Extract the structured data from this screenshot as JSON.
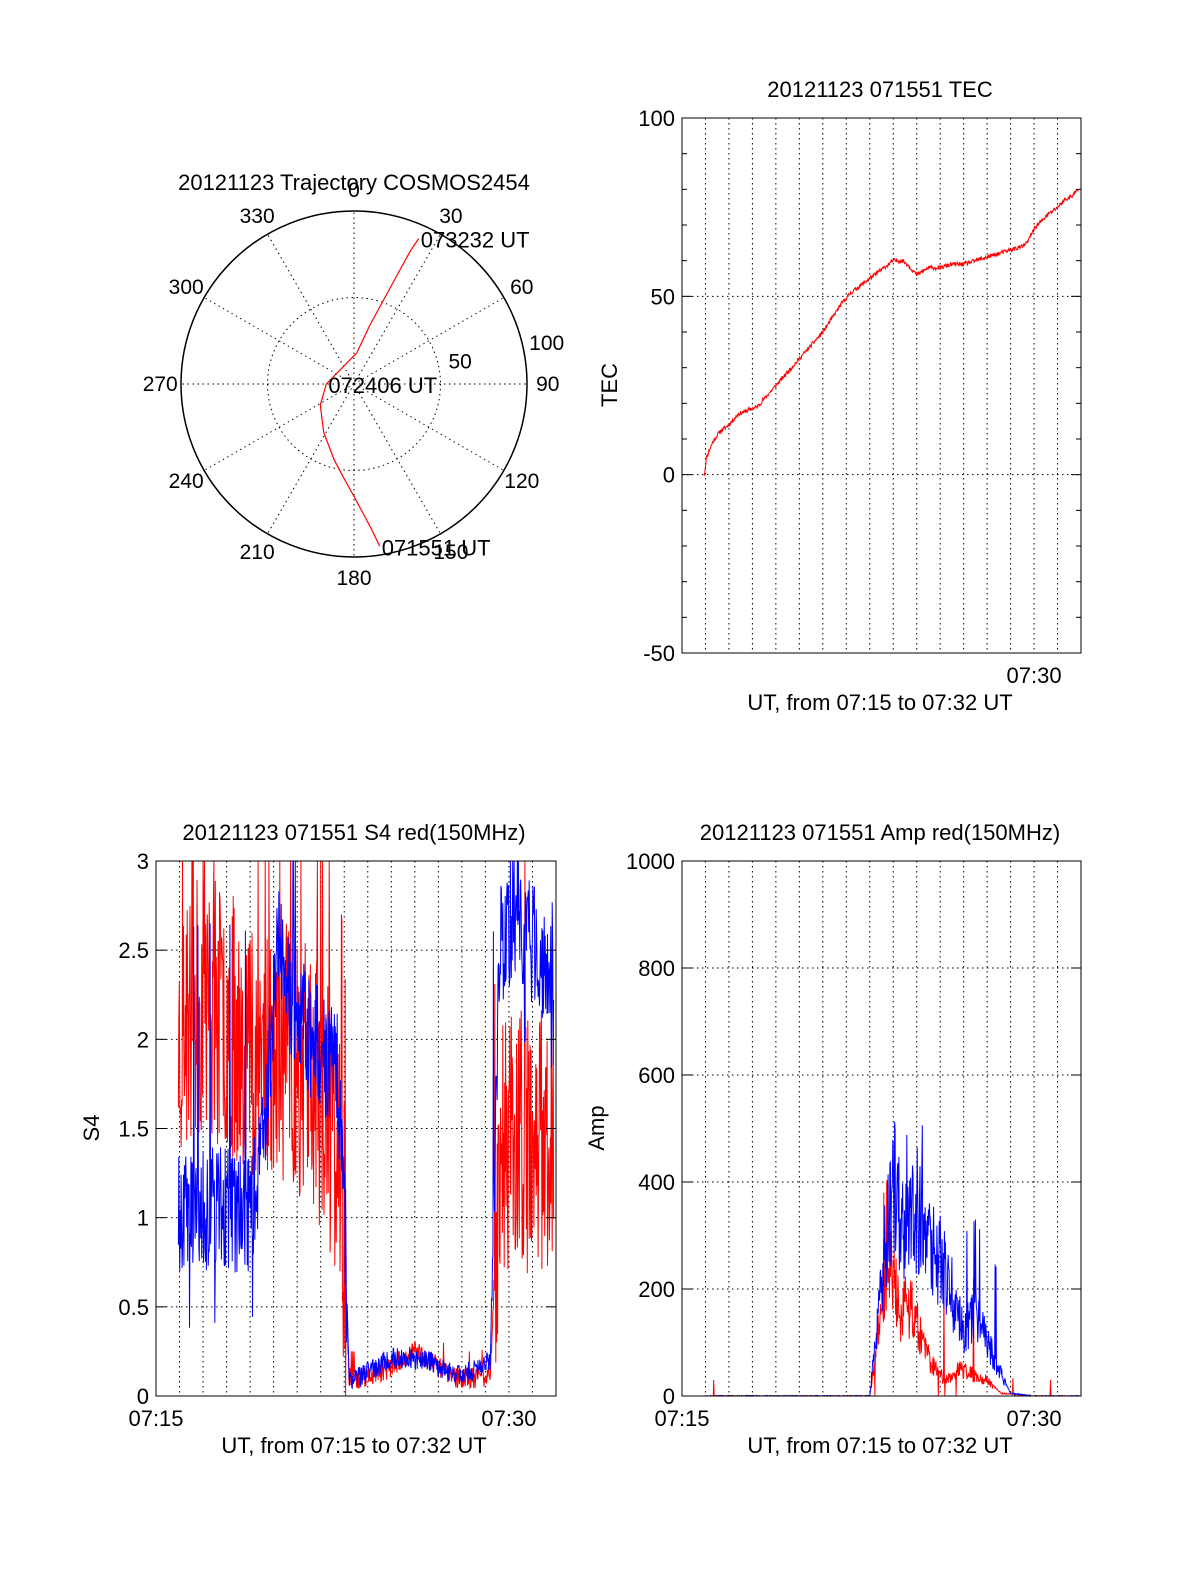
{
  "colors": {
    "red_series": "#ff0000",
    "blue_series": "#0000ff",
    "axis": "#000000",
    "grid": "#000000",
    "background": "#ffffff"
  },
  "chart_data": [
    {
      "id": "trajectory",
      "type": "polar",
      "title": "20121123 Trajectory COSMOS2454",
      "angle_labels": [
        "0",
        "30",
        "60",
        "90",
        "120",
        "150",
        "180",
        "210",
        "240",
        "270",
        "300",
        "330"
      ],
      "angle_values": [
        0,
        30,
        60,
        90,
        120,
        150,
        180,
        210,
        240,
        270,
        300,
        330
      ],
      "radial_labels": [
        "50",
        "100"
      ],
      "radial_values": [
        50,
        100
      ],
      "rlim": [
        0,
        100
      ],
      "grid": true,
      "series": [
        {
          "color": "#ff0000",
          "azimuth": [
            171,
            173,
            176,
            180,
            186,
            195,
            212,
            238,
            270,
            5,
            15,
            20,
            22,
            23,
            24
          ],
          "zenith_distance": [
            95,
            85,
            75,
            65,
            55,
            45,
            33,
            23,
            16,
            18,
            35,
            55,
            72,
            84,
            92
          ]
        }
      ],
      "annotations": [
        {
          "text": "073232 UT",
          "azimuth": 24,
          "zenith_distance": 92
        },
        {
          "text": "072406 UT",
          "azimuth": 270,
          "zenith_distance": 16
        },
        {
          "text": "071551 UT",
          "azimuth": 171,
          "zenith_distance": 95
        }
      ]
    },
    {
      "id": "tec",
      "type": "line",
      "title": "20121123 071551 TEC",
      "xlabel": "UT, from 07:15 to 07:32 UT",
      "ylabel": "TEC",
      "xlim_minutes_after_0715": [
        0,
        17
      ],
      "x_tick_labels": [
        "07:30"
      ],
      "x_tick_values": [
        15
      ],
      "ylim": [
        -50,
        100
      ],
      "y_tick_labels": [
        "-50",
        "0",
        "50",
        "100"
      ],
      "y_tick_values": [
        -50,
        0,
        50,
        100
      ],
      "grid": true,
      "series": [
        {
          "color": "#ff0000",
          "x": [
            0.95,
            1.05,
            1.3,
            1.6,
            2.0,
            2.4,
            2.8,
            3.2,
            3.6,
            4.0,
            4.4,
            4.8,
            5.2,
            5.6,
            6.0,
            6.4,
            6.8,
            7.2,
            7.6,
            8.0,
            8.4,
            8.8,
            9.0,
            9.2,
            9.4,
            9.6,
            10.0,
            10.5,
            11.0,
            11.5,
            12.0,
            12.5,
            13.0,
            13.5,
            14.0,
            14.5,
            14.7,
            15.0,
            15.3,
            15.6,
            16.0,
            16.3,
            16.6,
            16.9
          ],
          "y": [
            0,
            5,
            9,
            12,
            14,
            17,
            18,
            19,
            22,
            25,
            28,
            31,
            34,
            37,
            40,
            44,
            48,
            51,
            53,
            55,
            57,
            59,
            60,
            60,
            60,
            59,
            56,
            58,
            58,
            59,
            59,
            60,
            61,
            62,
            63,
            64,
            65,
            69,
            71,
            73,
            75,
            77,
            78,
            80
          ]
        }
      ]
    },
    {
      "id": "s4",
      "type": "line",
      "title": "20121123 071551 S4 red(150MHz)",
      "xlabel": "UT, from 07:15 to 07:32 UT",
      "ylabel": "S4",
      "xlim_minutes_after_0715": [
        0,
        17
      ],
      "x_tick_labels": [
        "07:15",
        "07:30"
      ],
      "x_tick_values": [
        0,
        15
      ],
      "ylim": [
        0,
        3
      ],
      "y_tick_labels": [
        "0",
        "0.5",
        "1",
        "1.5",
        "2",
        "2.5",
        "3"
      ],
      "y_tick_values": [
        0,
        0.5,
        1,
        1.5,
        2,
        2.5,
        3
      ],
      "grid": true,
      "series": [
        {
          "color": "#ff0000",
          "x": [
            0.95,
            2.0,
            3.0,
            4.0,
            5.0,
            5.8,
            6.6,
            7.2,
            7.7,
            8.0,
            8.2,
            8.6,
            9.2,
            9.8,
            10.4,
            11.0,
            11.6,
            12.2,
            12.8,
            13.6,
            14.2,
            14.6,
            15.2,
            15.8,
            16.4,
            16.9
          ],
          "y": [
            2.0,
            2.2,
            2.1,
            2.0,
            1.9,
            1.9,
            1.8,
            1.6,
            1.4,
            0.9,
            0.1,
            0.1,
            0.12,
            0.15,
            0.2,
            0.25,
            0.2,
            0.15,
            0.1,
            0.1,
            0.12,
            1.3,
            1.5,
            1.4,
            1.45,
            1.5
          ]
        },
        {
          "color": "#0000ff",
          "x": [
            0.95,
            2.0,
            3.0,
            4.0,
            4.6,
            5.2,
            5.8,
            6.6,
            7.2,
            7.7,
            8.0,
            8.2,
            8.6,
            9.2,
            9.8,
            10.4,
            11.0,
            11.6,
            12.2,
            12.8,
            13.6,
            14.2,
            14.6,
            15.2,
            15.8,
            16.4,
            16.9
          ],
          "y": [
            1.0,
            1.05,
            1.05,
            1.0,
            1.5,
            2.5,
            2.2,
            2.0,
            1.9,
            1.8,
            1.2,
            0.1,
            0.1,
            0.15,
            0.2,
            0.22,
            0.2,
            0.2,
            0.15,
            0.12,
            0.15,
            0.2,
            2.5,
            2.7,
            2.6,
            2.4,
            2.5
          ]
        }
      ]
    },
    {
      "id": "amp",
      "type": "line",
      "title": "20121123 071551 Amp red(150MHz)",
      "xlabel": "UT, from 07:15 to 07:32 UT",
      "ylabel": "Amp",
      "xlim_minutes_after_0715": [
        0,
        17
      ],
      "x_tick_labels": [
        "07:15",
        "07:30"
      ],
      "x_tick_values": [
        0,
        15
      ],
      "ylim": [
        0,
        1000
      ],
      "y_tick_labels": [
        "0",
        "200",
        "400",
        "600",
        "800",
        "1000"
      ],
      "y_tick_values": [
        0,
        200,
        400,
        600,
        800,
        1000
      ],
      "grid": true,
      "series": [
        {
          "color": "#ff0000",
          "x": [
            0.95,
            3.0,
            6.0,
            8.0,
            8.6,
            8.9,
            9.3,
            9.7,
            10.1,
            10.6,
            11.2,
            11.8,
            12.4,
            13.0,
            13.6,
            15.0,
            16.9
          ],
          "y": [
            0,
            0,
            0,
            0,
            200,
            250,
            150,
            180,
            120,
            60,
            30,
            50,
            40,
            30,
            5,
            0,
            0
          ]
        },
        {
          "color": "#0000ff",
          "x": [
            0.95,
            3.0,
            6.0,
            8.0,
            8.6,
            9.0,
            9.5,
            10.0,
            10.5,
            11.0,
            11.5,
            12.0,
            12.5,
            13.0,
            13.5,
            14.0,
            15.0,
            16.9
          ],
          "y": [
            0,
            0,
            0,
            0,
            250,
            400,
            300,
            350,
            300,
            250,
            200,
            120,
            150,
            100,
            50,
            5,
            0,
            0
          ]
        }
      ]
    }
  ]
}
